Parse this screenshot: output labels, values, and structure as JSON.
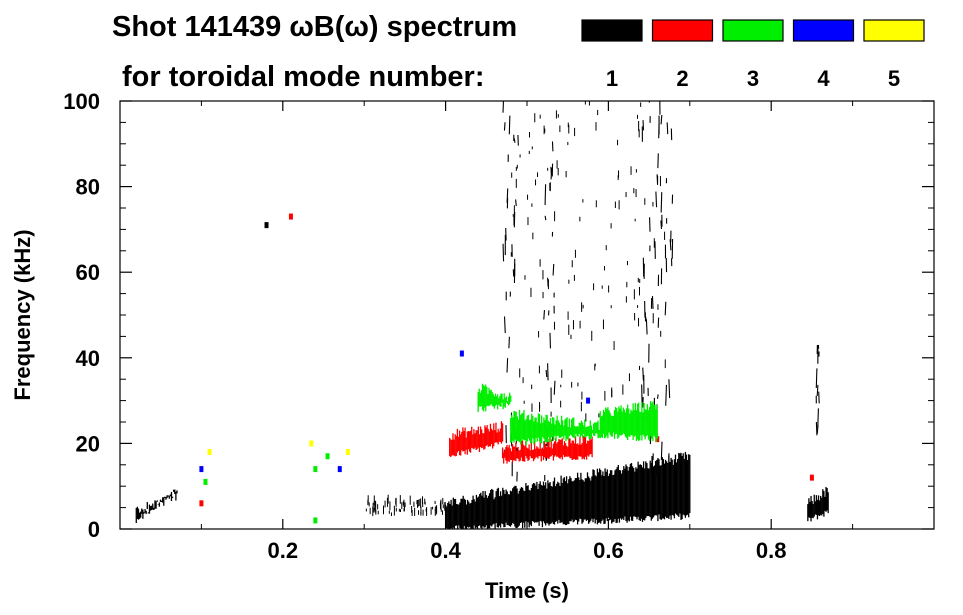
{
  "chart_data": {
    "type": "heatmap",
    "title_line1": "Shot 141439 ωB(ω) spectrum",
    "title_line2": "for toroidal mode number:",
    "xlabel": "Time (s)",
    "ylabel": "Frequency (kHz)",
    "xlim": [
      0.0,
      1.0
    ],
    "ylim": [
      0,
      100
    ],
    "x_ticks": [
      0.2,
      0.4,
      0.6,
      0.8
    ],
    "x_tick_labels": [
      "0.2",
      "0.4",
      "0.6",
      "0.8"
    ],
    "y_ticks": [
      0,
      20,
      40,
      60,
      80,
      100
    ],
    "y_tick_labels": [
      "0",
      "20",
      "40",
      "60",
      "80",
      "100"
    ],
    "grid": false,
    "legend": [
      {
        "label": "1",
        "color": "#000000"
      },
      {
        "label": "2",
        "color": "#ff0000"
      },
      {
        "label": "3",
        "color": "#00ee00"
      },
      {
        "label": "4",
        "color": "#0000ff"
      },
      {
        "label": "5",
        "color": "#ffff00"
      }
    ],
    "series": [
      {
        "mode": 1,
        "color": "#000000",
        "regions": [
          {
            "kind": "band",
            "t": [
              0.02,
              0.07
            ],
            "f_low": [
              2,
              9
            ],
            "f_high": [
              4,
              8
            ]
          },
          {
            "kind": "band",
            "t": [
              0.4,
              0.7
            ],
            "f_low": [
              0,
              3
            ],
            "f_high": [
              6,
              17
            ]
          },
          {
            "kind": "band",
            "t": [
              0.845,
              0.87
            ],
            "f_low": [
              2,
              4
            ],
            "f_high": [
              6,
              9
            ]
          },
          {
            "kind": "streak",
            "t": [
              0.47,
              0.49
            ],
            "f": [
              10,
              100
            ]
          },
          {
            "kind": "streak",
            "t": [
              0.52,
              0.535
            ],
            "f": [
              10,
              95
            ]
          },
          {
            "kind": "streak",
            "t": [
              0.64,
              0.68
            ],
            "f": [
              10,
              100
            ]
          },
          {
            "kind": "streak",
            "t": [
              0.855,
              0.86
            ],
            "f": [
              20,
              43
            ]
          },
          {
            "kind": "scatter",
            "t": [
              0.48,
              0.67
            ],
            "f": [
              25,
              100
            ]
          },
          {
            "kind": "scatter",
            "t": [
              0.3,
              0.4
            ],
            "f": [
              3,
              6
            ]
          },
          {
            "kind": "dot",
            "t": 0.18,
            "f": 71
          }
        ]
      },
      {
        "mode": 2,
        "color": "#ff0000",
        "regions": [
          {
            "kind": "band",
            "t": [
              0.405,
              0.47
            ],
            "f_low": [
              17,
              20
            ],
            "f_high": [
              22,
              24
            ]
          },
          {
            "kind": "band",
            "t": [
              0.47,
              0.58
            ],
            "f_low": [
              16,
              17
            ],
            "f_high": [
              19,
              21
            ]
          },
          {
            "kind": "dot",
            "t": 0.21,
            "f": 73
          },
          {
            "kind": "dot",
            "t": 0.1,
            "f": 6
          },
          {
            "kind": "dot",
            "t": 0.85,
            "f": 12
          },
          {
            "kind": "dot",
            "t": 0.66,
            "f": 21
          }
        ]
      },
      {
        "mode": 3,
        "color": "#00ee00",
        "regions": [
          {
            "kind": "band",
            "t": [
              0.44,
              0.48
            ],
            "f_low": [
              28,
              29
            ],
            "f_high": [
              33,
              31
            ]
          },
          {
            "kind": "band",
            "t": [
              0.48,
              0.59
            ],
            "f_low": [
              20,
              22
            ],
            "f_high": [
              27,
              24
            ]
          },
          {
            "kind": "band",
            "t": [
              0.59,
              0.66
            ],
            "f_low": [
              22,
              21
            ],
            "f_high": [
              27,
              29
            ]
          },
          {
            "kind": "dot",
            "t": 0.105,
            "f": 11
          },
          {
            "kind": "dot",
            "t": 0.24,
            "f": 14
          },
          {
            "kind": "dot",
            "t": 0.255,
            "f": 17
          },
          {
            "kind": "dot",
            "t": 0.24,
            "f": 2
          }
        ]
      },
      {
        "mode": 4,
        "color": "#0000ff",
        "regions": [
          {
            "kind": "dot",
            "t": 0.42,
            "f": 41
          },
          {
            "kind": "dot",
            "t": 0.1,
            "f": 14
          },
          {
            "kind": "dot",
            "t": 0.575,
            "f": 30
          },
          {
            "kind": "dot",
            "t": 0.27,
            "f": 14
          }
        ]
      },
      {
        "mode": 5,
        "color": "#ffff00",
        "regions": [
          {
            "kind": "dot",
            "t": 0.11,
            "f": 18
          },
          {
            "kind": "dot",
            "t": 0.235,
            "f": 20
          },
          {
            "kind": "dot",
            "t": 0.28,
            "f": 18
          }
        ]
      }
    ]
  }
}
